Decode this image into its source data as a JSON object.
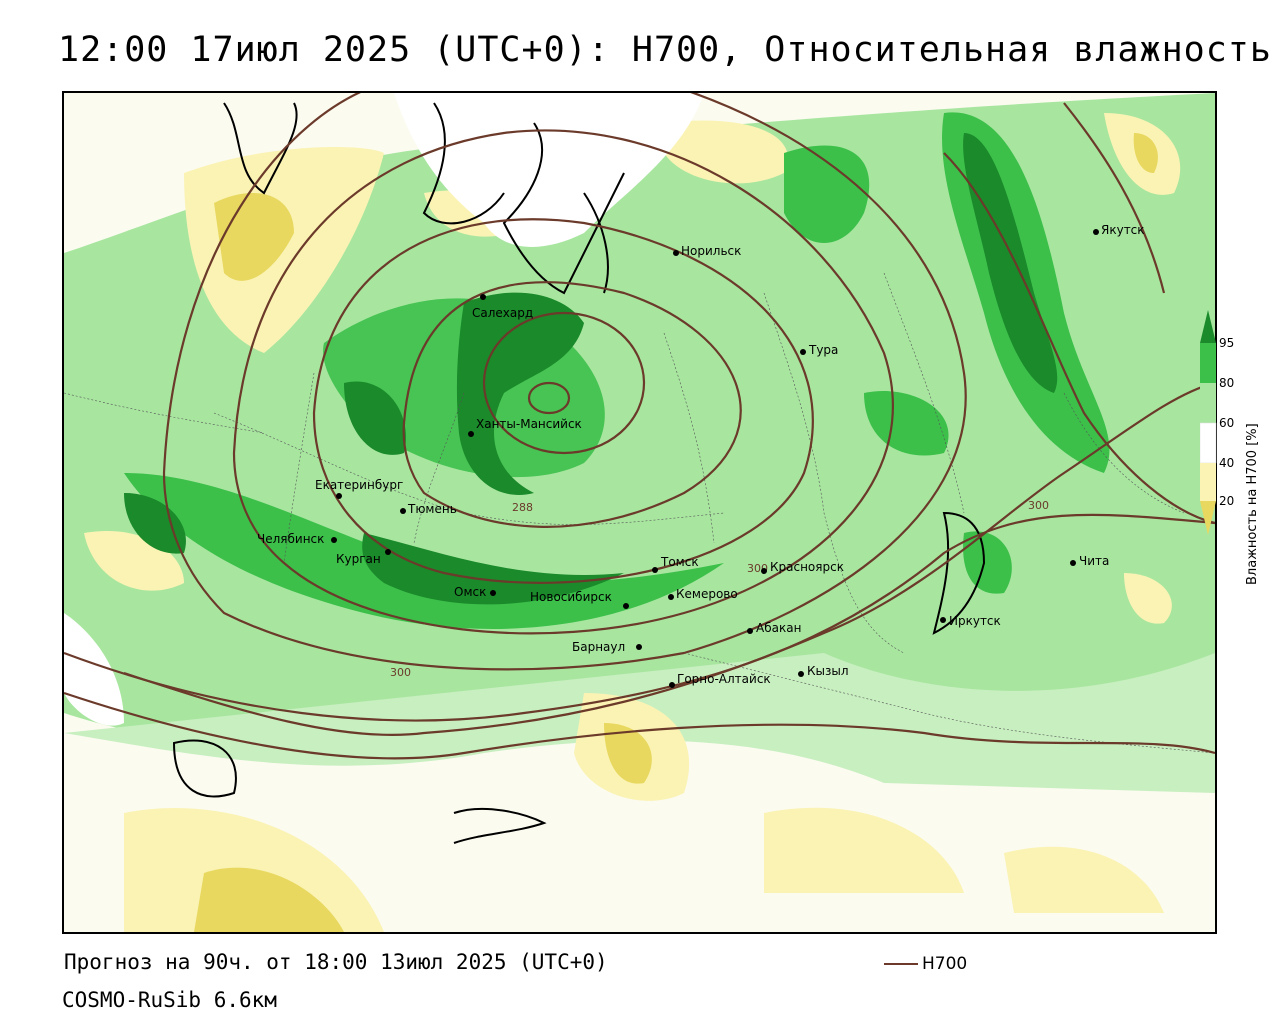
{
  "title": "12:00 17июл 2025 (UTC+0): H700, Относительная влажность",
  "footer": {
    "forecast": "Прогноз на 90ч. от 18:00 13июл 2025 (UTC+0)",
    "model": "COSMO-RuSib 6.6км",
    "legend_label": "H700"
  },
  "colorbar": {
    "title": "Влажность на H700 [%]",
    "ticks": [
      "95",
      "80",
      "60",
      "40",
      "20"
    ],
    "colors": [
      "#1a8a2a",
      "#3cc04a",
      "#a8e6a0",
      "#ffffff",
      "#fbf3b4",
      "#e8d860",
      "#c8b030"
    ]
  },
  "contour_labels": [
    "288",
    "300",
    "300",
    "300"
  ],
  "cities": [
    {
      "name": "Салехард"
    },
    {
      "name": "Норильск"
    },
    {
      "name": "Якутск"
    },
    {
      "name": "Тура"
    },
    {
      "name": "Ханты-Мансийск"
    },
    {
      "name": "Екатеринбург"
    },
    {
      "name": "Тюмень"
    },
    {
      "name": "Челябинск"
    },
    {
      "name": "Курган"
    },
    {
      "name": "Омск"
    },
    {
      "name": "Новосибирск"
    },
    {
      "name": "Томск"
    },
    {
      "name": "Кемерово"
    },
    {
      "name": "Красноярск"
    },
    {
      "name": "Абакан"
    },
    {
      "name": "Барнаул"
    },
    {
      "name": "Горно-Алтайск"
    },
    {
      "name": "Кызыл"
    },
    {
      "name": "Иркутск"
    },
    {
      "name": "Чита"
    }
  ]
}
